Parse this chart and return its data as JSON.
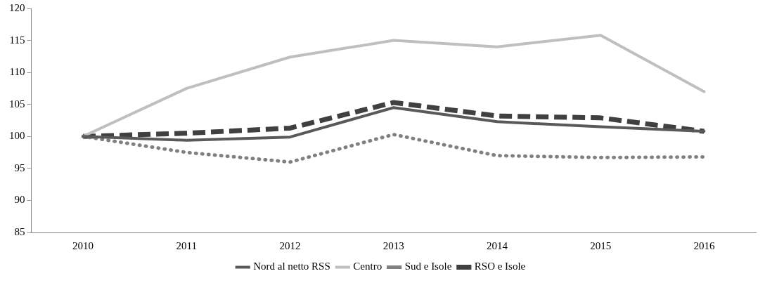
{
  "chart_data": {
    "type": "line",
    "categories": [
      "2010",
      "2011",
      "2012",
      "2013",
      "2014",
      "2015",
      "2016"
    ],
    "series": [
      {
        "name": "Nord al netto RSS",
        "color": "#595959",
        "line_style": "solid",
        "values": [
          100,
          99.4,
          99.9,
          104.5,
          102.3,
          101.5,
          100.8
        ]
      },
      {
        "name": "Centro",
        "color": "#bfbfbf",
        "line_style": "solid",
        "values": [
          100,
          107.5,
          112.4,
          115,
          114,
          115.8,
          107
        ]
      },
      {
        "name": "Sud e Isole",
        "color": "#808080",
        "line_style": "dotted",
        "values": [
          100,
          97.5,
          96,
          100.3,
          97,
          96.7,
          96.8
        ]
      },
      {
        "name": "RSO e Isole",
        "color": "#404040",
        "line_style": "dashed",
        "values": [
          100,
          100.5,
          101.3,
          105.3,
          103.2,
          102.9,
          100.8
        ]
      }
    ],
    "ylim": [
      85,
      120
    ],
    "yticks": [
      85,
      90,
      95,
      100,
      105,
      110,
      115,
      120
    ],
    "grid": false,
    "legend": "bottom",
    "marker": "none"
  }
}
